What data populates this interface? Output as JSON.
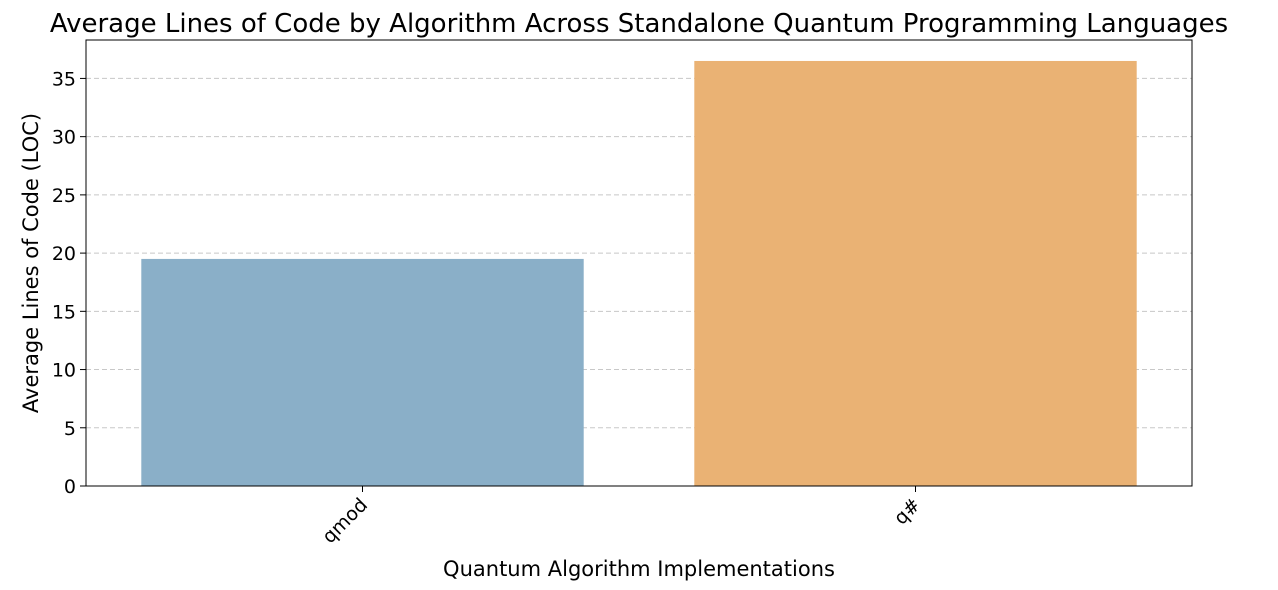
{
  "chart_data": {
    "type": "bar",
    "title": "Average Lines of Code by Algorithm Across Standalone Quantum Programming Languages",
    "xlabel": "Quantum Algorithm Implementations",
    "ylabel": "Average Lines of Code (LOC)",
    "categories": [
      "qmod",
      "q#"
    ],
    "values": [
      19.5,
      36.5
    ],
    "colors": [
      "#8aafc8",
      "#eab274"
    ],
    "ylim": [
      0,
      38.3
    ],
    "yticks": [
      0,
      5,
      10,
      15,
      20,
      25,
      30,
      35
    ],
    "grid": "y-dashed",
    "legend": "none",
    "xtick_rotation": 45
  }
}
